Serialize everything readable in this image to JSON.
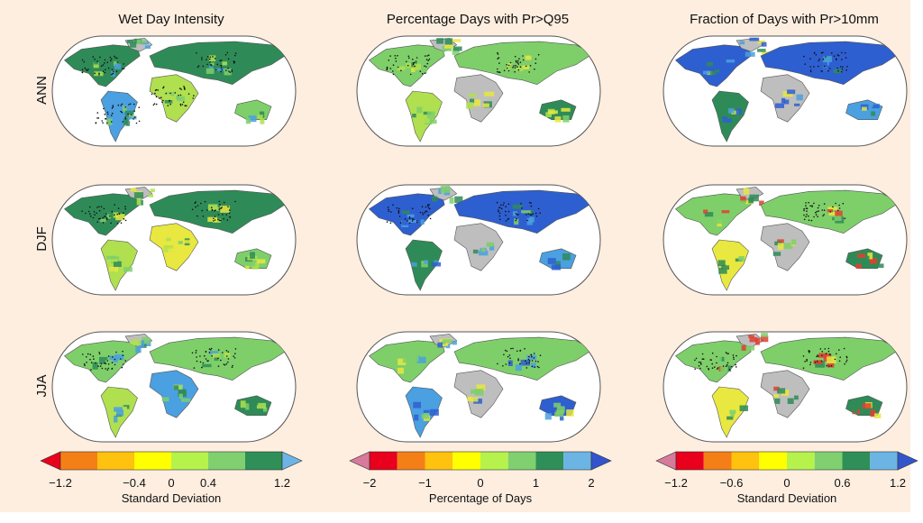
{
  "columns": [
    {
      "title": "Wet Day Intensity"
    },
    {
      "title": "Percentage Days with Pr>Q95"
    },
    {
      "title": "Fraction of Days with Pr>10mm"
    }
  ],
  "rows": [
    {
      "label": "ANN"
    },
    {
      "label": "DJF"
    },
    {
      "label": "JJA"
    }
  ],
  "colors": {
    "background": "#fdeee0",
    "ocean": "#ffffff",
    "land_nodata": "#bebebe",
    "map_outline": "#555555",
    "stipple": "#111111"
  },
  "maps": [
    {
      "column": "Wet Day Intensity",
      "season": "ANN",
      "dominant_palette": [
        "#2e8b57",
        "#7ecf6a",
        "#4aa0e0",
        "#b0e050"
      ],
      "stippled_regions": [
        "north-america",
        "eurasia",
        "south-america",
        "africa"
      ]
    },
    {
      "column": "Percentage Days with Pr>Q95",
      "season": "ANN",
      "dominant_palette": [
        "#7ecf6a",
        "#2e8b57",
        "#b0e050",
        "#e8e840"
      ],
      "stippled_regions": [
        "eurasia",
        "north-america"
      ]
    },
    {
      "column": "Fraction of Days with Pr>10mm",
      "season": "ANN",
      "dominant_palette": [
        "#2e5fd0",
        "#4aa0e0",
        "#2e8b57",
        "#e8e840"
      ],
      "stippled_regions": [
        "eurasia"
      ]
    },
    {
      "column": "Wet Day Intensity",
      "season": "DJF",
      "dominant_palette": [
        "#2e8b57",
        "#7ecf6a",
        "#b0e050",
        "#e8e840"
      ],
      "stippled_regions": [
        "eurasia",
        "north-america"
      ]
    },
    {
      "column": "Percentage Days with Pr>Q95",
      "season": "DJF",
      "dominant_palette": [
        "#2e5fd0",
        "#4aa0e0",
        "#2e8b57",
        "#7ecf6a"
      ],
      "stippled_regions": [
        "eurasia",
        "north-america"
      ]
    },
    {
      "column": "Fraction of Days with Pr>10mm",
      "season": "DJF",
      "dominant_palette": [
        "#7ecf6a",
        "#2e8b57",
        "#e8e840",
        "#e04030"
      ],
      "stippled_regions": [
        "eurasia"
      ]
    },
    {
      "column": "Wet Day Intensity",
      "season": "JJA",
      "dominant_palette": [
        "#7ecf6a",
        "#2e8b57",
        "#b0e050",
        "#4aa0e0"
      ],
      "stippled_regions": [
        "eurasia",
        "north-america"
      ]
    },
    {
      "column": "Percentage Days with Pr>Q95",
      "season": "JJA",
      "dominant_palette": [
        "#7ecf6a",
        "#2e5fd0",
        "#4aa0e0",
        "#e8e840"
      ],
      "stippled_regions": [
        "eurasia"
      ]
    },
    {
      "column": "Fraction of Days with Pr>10mm",
      "season": "JJA",
      "dominant_palette": [
        "#7ecf6a",
        "#2e8b57",
        "#e8e840",
        "#e04030"
      ],
      "stippled_regions": [
        "eurasia",
        "north-america"
      ]
    }
  ],
  "colorbars": [
    {
      "title": "Standard Deviation",
      "low_arrow": "#e8001c",
      "high_arrow": "#6cb4e4",
      "bins": [
        "#f57f17",
        "#ffc20e",
        "#ffff00",
        "#b6f24c",
        "#80d070",
        "#2f8f58"
      ],
      "ticks": [
        {
          "label": "−1.2",
          "frac": 0.0
        },
        {
          "label": "−0.4",
          "frac": 0.3333
        },
        {
          "label": "0",
          "frac": 0.5
        },
        {
          "label": "0.4",
          "frac": 0.6667
        },
        {
          "label": "1.2",
          "frac": 1.0
        }
      ]
    },
    {
      "title": "Percentage of Days",
      "low_arrow": "#d77a9b",
      "high_arrow": "#3355cc",
      "bins": [
        "#e8001c",
        "#f57f17",
        "#ffc20e",
        "#ffff00",
        "#b6f24c",
        "#80d070",
        "#2f8f58",
        "#6cb4e4"
      ],
      "ticks": [
        {
          "label": "−2",
          "frac": 0.0
        },
        {
          "label": "−1",
          "frac": 0.25
        },
        {
          "label": "0",
          "frac": 0.5
        },
        {
          "label": "1",
          "frac": 0.75
        },
        {
          "label": "2",
          "frac": 1.0
        }
      ]
    },
    {
      "title": "Standard Deviation",
      "low_arrow": "#d77a9b",
      "high_arrow": "#3355cc",
      "bins": [
        "#e8001c",
        "#f57f17",
        "#ffc20e",
        "#ffff00",
        "#b6f24c",
        "#80d070",
        "#2f8f58",
        "#6cb4e4"
      ],
      "ticks": [
        {
          "label": "−1.2",
          "frac": 0.0
        },
        {
          "label": "−0.6",
          "frac": 0.25
        },
        {
          "label": "0",
          "frac": 0.5
        },
        {
          "label": "0.6",
          "frac": 0.75
        },
        {
          "label": "1.2",
          "frac": 1.0
        }
      ]
    }
  ]
}
